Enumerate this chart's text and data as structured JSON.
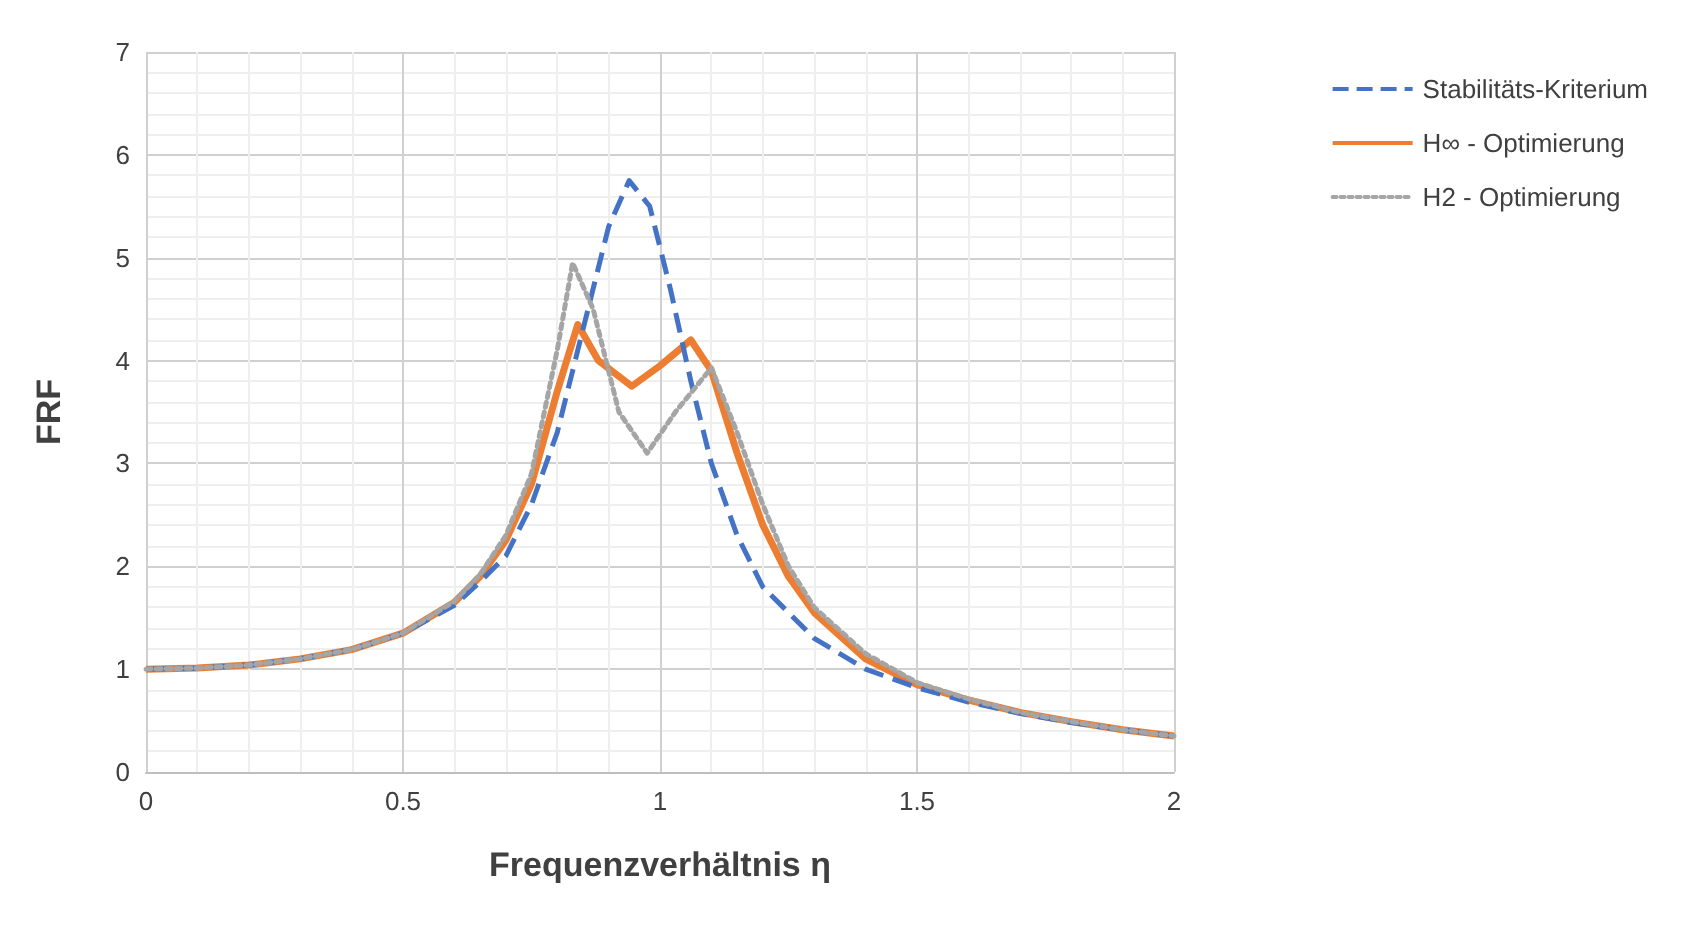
{
  "chart_data": {
    "type": "line",
    "xlabel": "Frequenzverhältnis η",
    "ylabel": "FRF",
    "xlim": [
      0,
      2
    ],
    "xticks": [
      0,
      0.5,
      1,
      1.5,
      2
    ],
    "ylim": [
      0,
      7
    ],
    "yticks": [
      0,
      1,
      2,
      3,
      4,
      5,
      6,
      7
    ],
    "grid": true,
    "legend": "top right",
    "marker": "none",
    "series": [
      {
        "name": "Stabilitäts-Kriterium",
        "color": "#4472c4",
        "line_style": "dashed",
        "x": [
          0,
          0.1,
          0.2,
          0.3,
          0.4,
          0.5,
          0.6,
          0.65,
          0.7,
          0.75,
          0.8,
          0.85,
          0.9,
          0.94,
          0.98,
          1.02,
          1.06,
          1.1,
          1.15,
          1.2,
          1.3,
          1.4,
          1.5,
          1.6,
          1.7,
          1.8,
          1.9,
          2.0
        ],
        "values": [
          1,
          1.01,
          1.04,
          1.1,
          1.19,
          1.35,
          1.62,
          1.85,
          2.1,
          2.6,
          3.3,
          4.3,
          5.3,
          5.75,
          5.5,
          4.7,
          3.8,
          3.0,
          2.3,
          1.8,
          1.3,
          1.0,
          0.82,
          0.68,
          0.57,
          0.48,
          0.41,
          0.35
        ]
      },
      {
        "name": "H∞ - Optimierung",
        "color": "#ed7d31",
        "line_style": "solid",
        "x": [
          0,
          0.1,
          0.2,
          0.3,
          0.4,
          0.5,
          0.6,
          0.65,
          0.7,
          0.75,
          0.8,
          0.84,
          0.88,
          0.945,
          1.0,
          1.06,
          1.1,
          1.15,
          1.2,
          1.25,
          1.3,
          1.4,
          1.5,
          1.6,
          1.7,
          1.8,
          1.9,
          2.0
        ],
        "values": [
          1,
          1.01,
          1.04,
          1.1,
          1.19,
          1.35,
          1.65,
          1.9,
          2.25,
          2.8,
          3.7,
          4.35,
          4.0,
          3.75,
          3.95,
          4.2,
          3.9,
          3.1,
          2.4,
          1.9,
          1.55,
          1.1,
          0.85,
          0.7,
          0.58,
          0.49,
          0.41,
          0.35
        ]
      },
      {
        "name": "H2 - Optimierung",
        "color": "#a5a5a5",
        "line_style": "dotted",
        "x": [
          0,
          0.1,
          0.2,
          0.3,
          0.4,
          0.5,
          0.6,
          0.65,
          0.7,
          0.75,
          0.8,
          0.83,
          0.87,
          0.92,
          0.975,
          1.03,
          1.1,
          1.15,
          1.2,
          1.25,
          1.3,
          1.4,
          1.5,
          1.6,
          1.7,
          1.8,
          1.9,
          2.0
        ],
        "values": [
          1,
          1.01,
          1.04,
          1.1,
          1.19,
          1.35,
          1.66,
          1.92,
          2.3,
          2.9,
          4.1,
          4.95,
          4.5,
          3.5,
          3.1,
          3.5,
          3.93,
          3.3,
          2.6,
          2.0,
          1.6,
          1.15,
          0.87,
          0.71,
          0.58,
          0.49,
          0.41,
          0.35
        ]
      }
    ]
  }
}
